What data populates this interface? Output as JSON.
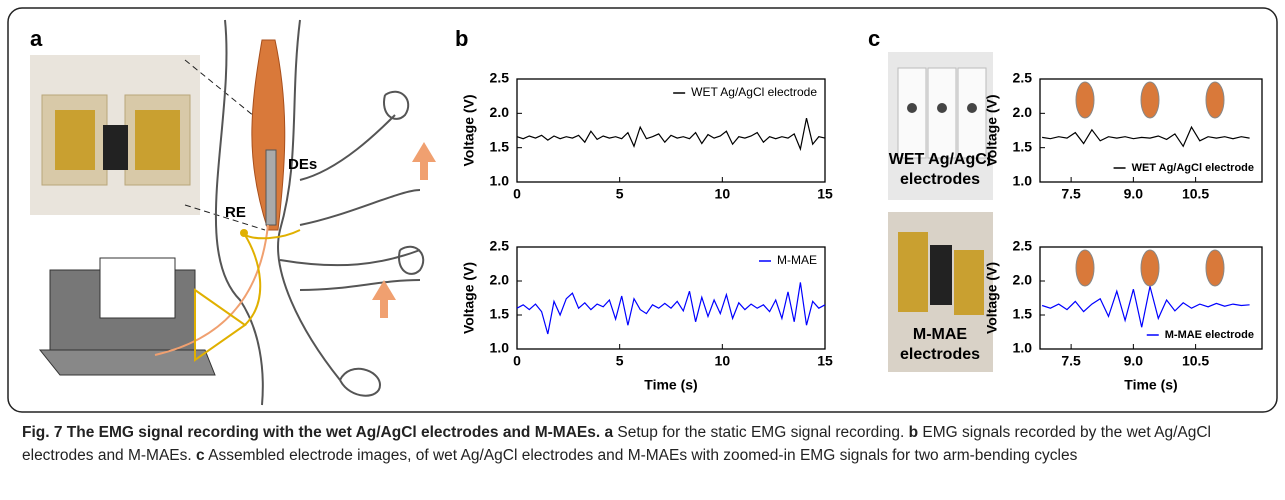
{
  "panel_labels": {
    "a": "a",
    "b": "b",
    "c": "c"
  },
  "illustration": {
    "de": "DEs",
    "re": "RE"
  },
  "photos": {
    "wet": [
      "WET Ag/AgCl",
      "electrodes"
    ],
    "mmae": [
      "M-MAE",
      "electrodes"
    ]
  },
  "chart_data": [
    {
      "type": "line",
      "ylabel": "Voltage (V)",
      "xlim": [
        0,
        15
      ],
      "ylim": [
        1,
        2.5
      ],
      "xticks": [
        0,
        5,
        10,
        15
      ],
      "yticks": [
        {
          "value": 1,
          "label": "1.0"
        },
        1.5,
        {
          "value": 2,
          "label": "2.0"
        },
        2.5
      ],
      "legend": "upper right",
      "x": [
        0,
        0.3,
        0.6,
        0.9,
        1.2,
        1.5,
        1.8,
        2.1,
        2.4,
        2.7,
        3.0,
        3.3,
        3.6,
        3.9,
        4.2,
        4.5,
        4.8,
        5.1,
        5.4,
        5.7,
        6.0,
        6.3,
        6.6,
        6.9,
        7.2,
        7.5,
        7.8,
        8.1,
        8.4,
        8.7,
        9.0,
        9.3,
        9.6,
        9.9,
        10.2,
        10.5,
        10.8,
        11.1,
        11.4,
        11.7,
        12.0,
        12.3,
        12.6,
        12.9,
        13.2,
        13.5,
        13.8,
        14.1,
        14.4,
        14.7,
        15.0
      ],
      "series": [
        {
          "name": "WET Ag/AgCl electrode",
          "color": "#000000",
          "values": [
            1.66,
            1.63,
            1.67,
            1.64,
            1.68,
            1.61,
            1.67,
            1.63,
            1.66,
            1.64,
            1.68,
            1.58,
            1.74,
            1.62,
            1.67,
            1.64,
            1.66,
            1.63,
            1.72,
            1.52,
            1.8,
            1.63,
            1.66,
            1.7,
            1.58,
            1.68,
            1.64,
            1.66,
            1.63,
            1.72,
            1.56,
            1.69,
            1.64,
            1.67,
            1.74,
            1.55,
            1.66,
            1.64,
            1.67,
            1.72,
            1.58,
            1.66,
            1.63,
            1.66,
            1.64,
            1.7,
            1.48,
            1.93,
            1.55,
            1.66,
            1.64
          ]
        }
      ]
    },
    {
      "type": "line",
      "ylabel": "Voltage (V)",
      "xlabel": "Time (s)",
      "xlim": [
        0,
        15
      ],
      "ylim": [
        1,
        2.5
      ],
      "xticks": [
        0,
        5,
        10,
        15
      ],
      "yticks": [
        {
          "value": 1,
          "label": "1.0"
        },
        1.5,
        {
          "value": 2,
          "label": "2.0"
        },
        2.5
      ],
      "legend": "upper right",
      "x": [
        0,
        0.3,
        0.6,
        0.9,
        1.2,
        1.5,
        1.8,
        2.1,
        2.4,
        2.7,
        3.0,
        3.3,
        3.6,
        3.9,
        4.2,
        4.5,
        4.8,
        5.1,
        5.4,
        5.7,
        6.0,
        6.3,
        6.6,
        6.9,
        7.2,
        7.5,
        7.8,
        8.1,
        8.4,
        8.7,
        9.0,
        9.3,
        9.6,
        9.9,
        10.2,
        10.5,
        10.8,
        11.1,
        11.4,
        11.7,
        12.0,
        12.3,
        12.6,
        12.9,
        13.2,
        13.5,
        13.8,
        14.1,
        14.4,
        14.7,
        15.0
      ],
      "series": [
        {
          "name": "M-MAE",
          "color": "#0000ff",
          "values": [
            1.6,
            1.65,
            1.58,
            1.66,
            1.55,
            1.22,
            1.7,
            1.5,
            1.74,
            1.82,
            1.6,
            1.68,
            1.58,
            1.66,
            1.62,
            1.72,
            1.44,
            1.78,
            1.35,
            1.74,
            1.58,
            1.52,
            1.65,
            1.6,
            1.67,
            1.6,
            1.7,
            1.56,
            1.85,
            1.4,
            1.76,
            1.48,
            1.72,
            1.52,
            1.8,
            1.45,
            1.68,
            1.58,
            1.66,
            1.6,
            1.65,
            1.55,
            1.72,
            1.45,
            1.84,
            1.4,
            1.98,
            1.35,
            1.7,
            1.6,
            1.65
          ]
        }
      ]
    },
    {
      "type": "line",
      "ylabel": "Voltage (V)",
      "xlim": [
        6.75,
        12.1
      ],
      "ylim": [
        1,
        2.5
      ],
      "xticks": [
        7.5,
        {
          "value": 9,
          "label": "9.0"
        },
        10.5
      ],
      "yticks": [
        {
          "value": 1,
          "label": "1.0"
        },
        1.5,
        {
          "value": 2,
          "label": "2.0"
        },
        2.5
      ],
      "legend": "lower right",
      "x": [
        6.8,
        7.0,
        7.2,
        7.4,
        7.6,
        7.8,
        8.0,
        8.2,
        8.4,
        8.6,
        8.8,
        9.0,
        9.2,
        9.4,
        9.6,
        9.8,
        10.0,
        10.2,
        10.4,
        10.6,
        10.8,
        11.0,
        11.2,
        11.4,
        11.6,
        11.8
      ],
      "series": [
        {
          "name": "WET Ag/AgCl electrode",
          "color": "#000000",
          "values": [
            1.65,
            1.63,
            1.66,
            1.64,
            1.72,
            1.56,
            1.76,
            1.6,
            1.66,
            1.64,
            1.66,
            1.63,
            1.65,
            1.64,
            1.67,
            1.62,
            1.7,
            1.52,
            1.8,
            1.6,
            1.66,
            1.64,
            1.66,
            1.63,
            1.66,
            1.64
          ]
        }
      ]
    },
    {
      "type": "line",
      "ylabel": "Voltage (V)",
      "xlabel": "Time (s)",
      "xlim": [
        6.75,
        12.1
      ],
      "ylim": [
        1,
        2.5
      ],
      "xticks": [
        7.5,
        {
          "value": 9,
          "label": "9.0"
        },
        10.5
      ],
      "yticks": [
        {
          "value": 1,
          "label": "1.0"
        },
        1.5,
        {
          "value": 2,
          "label": "2.0"
        },
        2.5
      ],
      "legend": "lower right",
      "x": [
        6.8,
        7.0,
        7.2,
        7.4,
        7.6,
        7.8,
        8.0,
        8.2,
        8.4,
        8.6,
        8.8,
        9.0,
        9.2,
        9.4,
        9.6,
        9.8,
        10.0,
        10.2,
        10.4,
        10.6,
        10.8,
        11.0,
        11.2,
        11.4,
        11.6,
        11.8
      ],
      "series": [
        {
          "name": "M-MAE electrode",
          "color": "#0000ff",
          "values": [
            1.64,
            1.6,
            1.66,
            1.58,
            1.7,
            1.55,
            1.66,
            1.74,
            1.48,
            1.85,
            1.42,
            1.88,
            1.32,
            1.92,
            1.45,
            1.72,
            1.56,
            1.68,
            1.6,
            1.66,
            1.62,
            1.67,
            1.63,
            1.66,
            1.64,
            1.65
          ]
        }
      ]
    }
  ],
  "caption": {
    "title": "Fig. 7 The EMG signal recording with the wet Ag/AgCl electrodes and M-MAEs.",
    "parts": [
      {
        "label": "a",
        "text": "Setup for the static EMG signal recording."
      },
      {
        "label": "b",
        "text": "EMG signals recorded by the wet Ag/AgCl electrodes and M-MAEs."
      },
      {
        "label": "c",
        "text": "Assembled electrode images, of wet Ag/AgCl electrodes and M-MAEs with zoomed-in EMG signals for two arm-bending cycles"
      }
    ]
  }
}
